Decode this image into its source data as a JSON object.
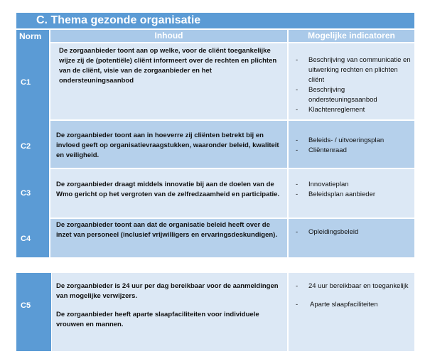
{
  "title": "C. Thema gezonde organisatie",
  "headers": {
    "norm": "Norm",
    "inhoud": "Inhoud",
    "indicatoren": "Mogelijke indicatoren"
  },
  "rows": [
    {
      "norm": "C1",
      "inhoud": [
        "De zorgaanbieder toont aan op welke, voor de cliënt toegankelijke wijze zij de (potentiële) cliënt  informeert over de rechten en plichten van de cliënt, visie van de zorgaanbieder en het ondersteuningsaanbod"
      ],
      "indicatoren": [
        "Beschrijving  van communicatie en uitwerking rechten en plichten cliënt",
        "Beschrijving ondersteuningsaanbod",
        "Klachtenreglement"
      ]
    },
    {
      "norm": "C2",
      "inhoud": [
        "De zorgaanbieder toont aan in hoeverre zij cliënten betrekt bij en invloed geeft op organisatievraagstukken, waaronder beleid, kwaliteit en veiligheid."
      ],
      "indicatoren": [
        "Beleids- / uitvoeringsplan",
        "Cliëntenraad"
      ]
    },
    {
      "norm": "C3",
      "inhoud": [
        "De zorgaanbieder draagt middels innovatie bij aan de doelen van de Wmo gericht op het vergroten van de zelfredzaamheid en participatie."
      ],
      "indicatoren": [
        "Innovatieplan",
        "Beleidsplan aanbieder"
      ]
    },
    {
      "norm": "C4",
      "inhoud": [
        "De zorgaanbieder toont aan dat de organisatie beleid heeft over de inzet van personeel (inclusief vrijwilligers en ervaringsdeskundigen)."
      ],
      "indicatoren": [
        "Opleidingsbeleid"
      ]
    },
    {
      "norm": "C5",
      "inhoud": [
        "De zorgaanbieder is 24 uur per dag bereikbaar voor de aanmeldingen van mogelijke verwijzers.",
        "De zorgaanbieder heeft aparte slaapfaciliteiten voor individuele vrouwen en mannen."
      ],
      "indicatoren": [
        "24 uur bereikbaar en toegankelijk",
        "Aparte slaapfaciliteiten"
      ]
    }
  ],
  "colors": {
    "dark_blue": "#5b9bd5",
    "light_row": "#dce8f5",
    "mid_row": "#b5d0eb"
  }
}
